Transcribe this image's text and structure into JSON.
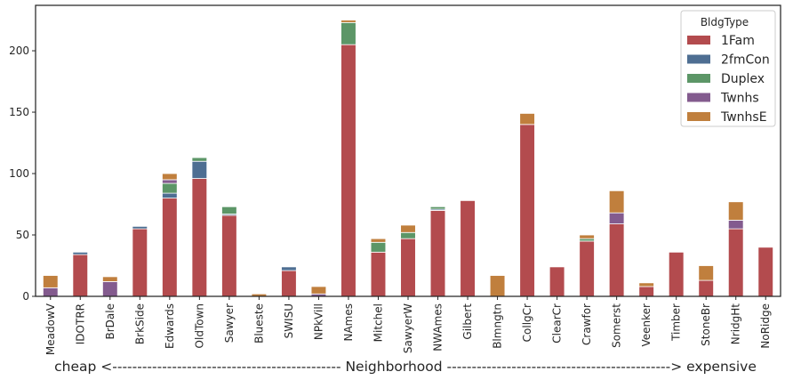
{
  "chart_data": {
    "type": "bar",
    "stacked": true,
    "xlabel": "cheap <---------------------------------------------- Neighborhood ---------------------------------------------> expensive",
    "ylabel": "",
    "ylim": [
      0,
      237
    ],
    "yticks": [
      0,
      50,
      100,
      150,
      200
    ],
    "grid": false,
    "legend": {
      "title": "BldgType",
      "position": "top-right"
    },
    "categories": [
      "MeadowV",
      "IDOTRR",
      "BrDale",
      "BrkSide",
      "Edwards",
      "OldTown",
      "Sawyer",
      "Blueste",
      "SWISU",
      "NPkVill",
      "NAmes",
      "Mitchel",
      "SawyerW",
      "NWAmes",
      "Gilbert",
      "Blmngtn",
      "CollgCr",
      "ClearCr",
      "Crawfor",
      "Somerst",
      "Veenker",
      "Timber",
      "StoneBr",
      "NridgHt",
      "NoRidge"
    ],
    "series": [
      {
        "name": "1Fam",
        "color": "#b34b4e",
        "values": [
          0,
          34,
          0,
          55,
          80,
          96,
          66,
          0,
          21,
          0,
          205,
          36,
          47,
          70,
          78,
          0,
          140,
          24,
          45,
          59,
          8,
          36,
          13,
          55,
          40
        ]
      },
      {
        "name": "2fmCon",
        "color": "#4e6e92",
        "values": [
          0,
          2,
          0,
          2,
          4,
          14,
          1,
          0,
          3,
          0,
          0,
          0,
          0,
          1,
          0,
          0,
          0,
          0,
          0,
          0,
          0,
          0,
          0,
          0,
          0
        ]
      },
      {
        "name": "Duplex",
        "color": "#5c9667",
        "values": [
          0,
          0,
          0,
          0,
          8,
          3,
          6,
          0,
          0,
          0,
          18,
          8,
          5,
          2,
          0,
          0,
          0,
          0,
          2,
          0,
          0,
          0,
          0,
          0,
          0
        ]
      },
      {
        "name": "Twnhs",
        "color": "#835b8e",
        "values": [
          7,
          0,
          12,
          0,
          3,
          0,
          0,
          0,
          0,
          2,
          0,
          0,
          0,
          0,
          0,
          0,
          0,
          0,
          0,
          9,
          0,
          0,
          0,
          7,
          0
        ]
      },
      {
        "name": "TwnhsE",
        "color": "#c07f3d",
        "values": [
          10,
          0,
          4,
          0,
          5,
          0,
          0,
          2,
          0,
          6,
          2,
          3,
          6,
          0,
          0,
          17,
          9,
          0,
          3,
          18,
          3,
          0,
          12,
          15,
          0
        ]
      }
    ]
  }
}
